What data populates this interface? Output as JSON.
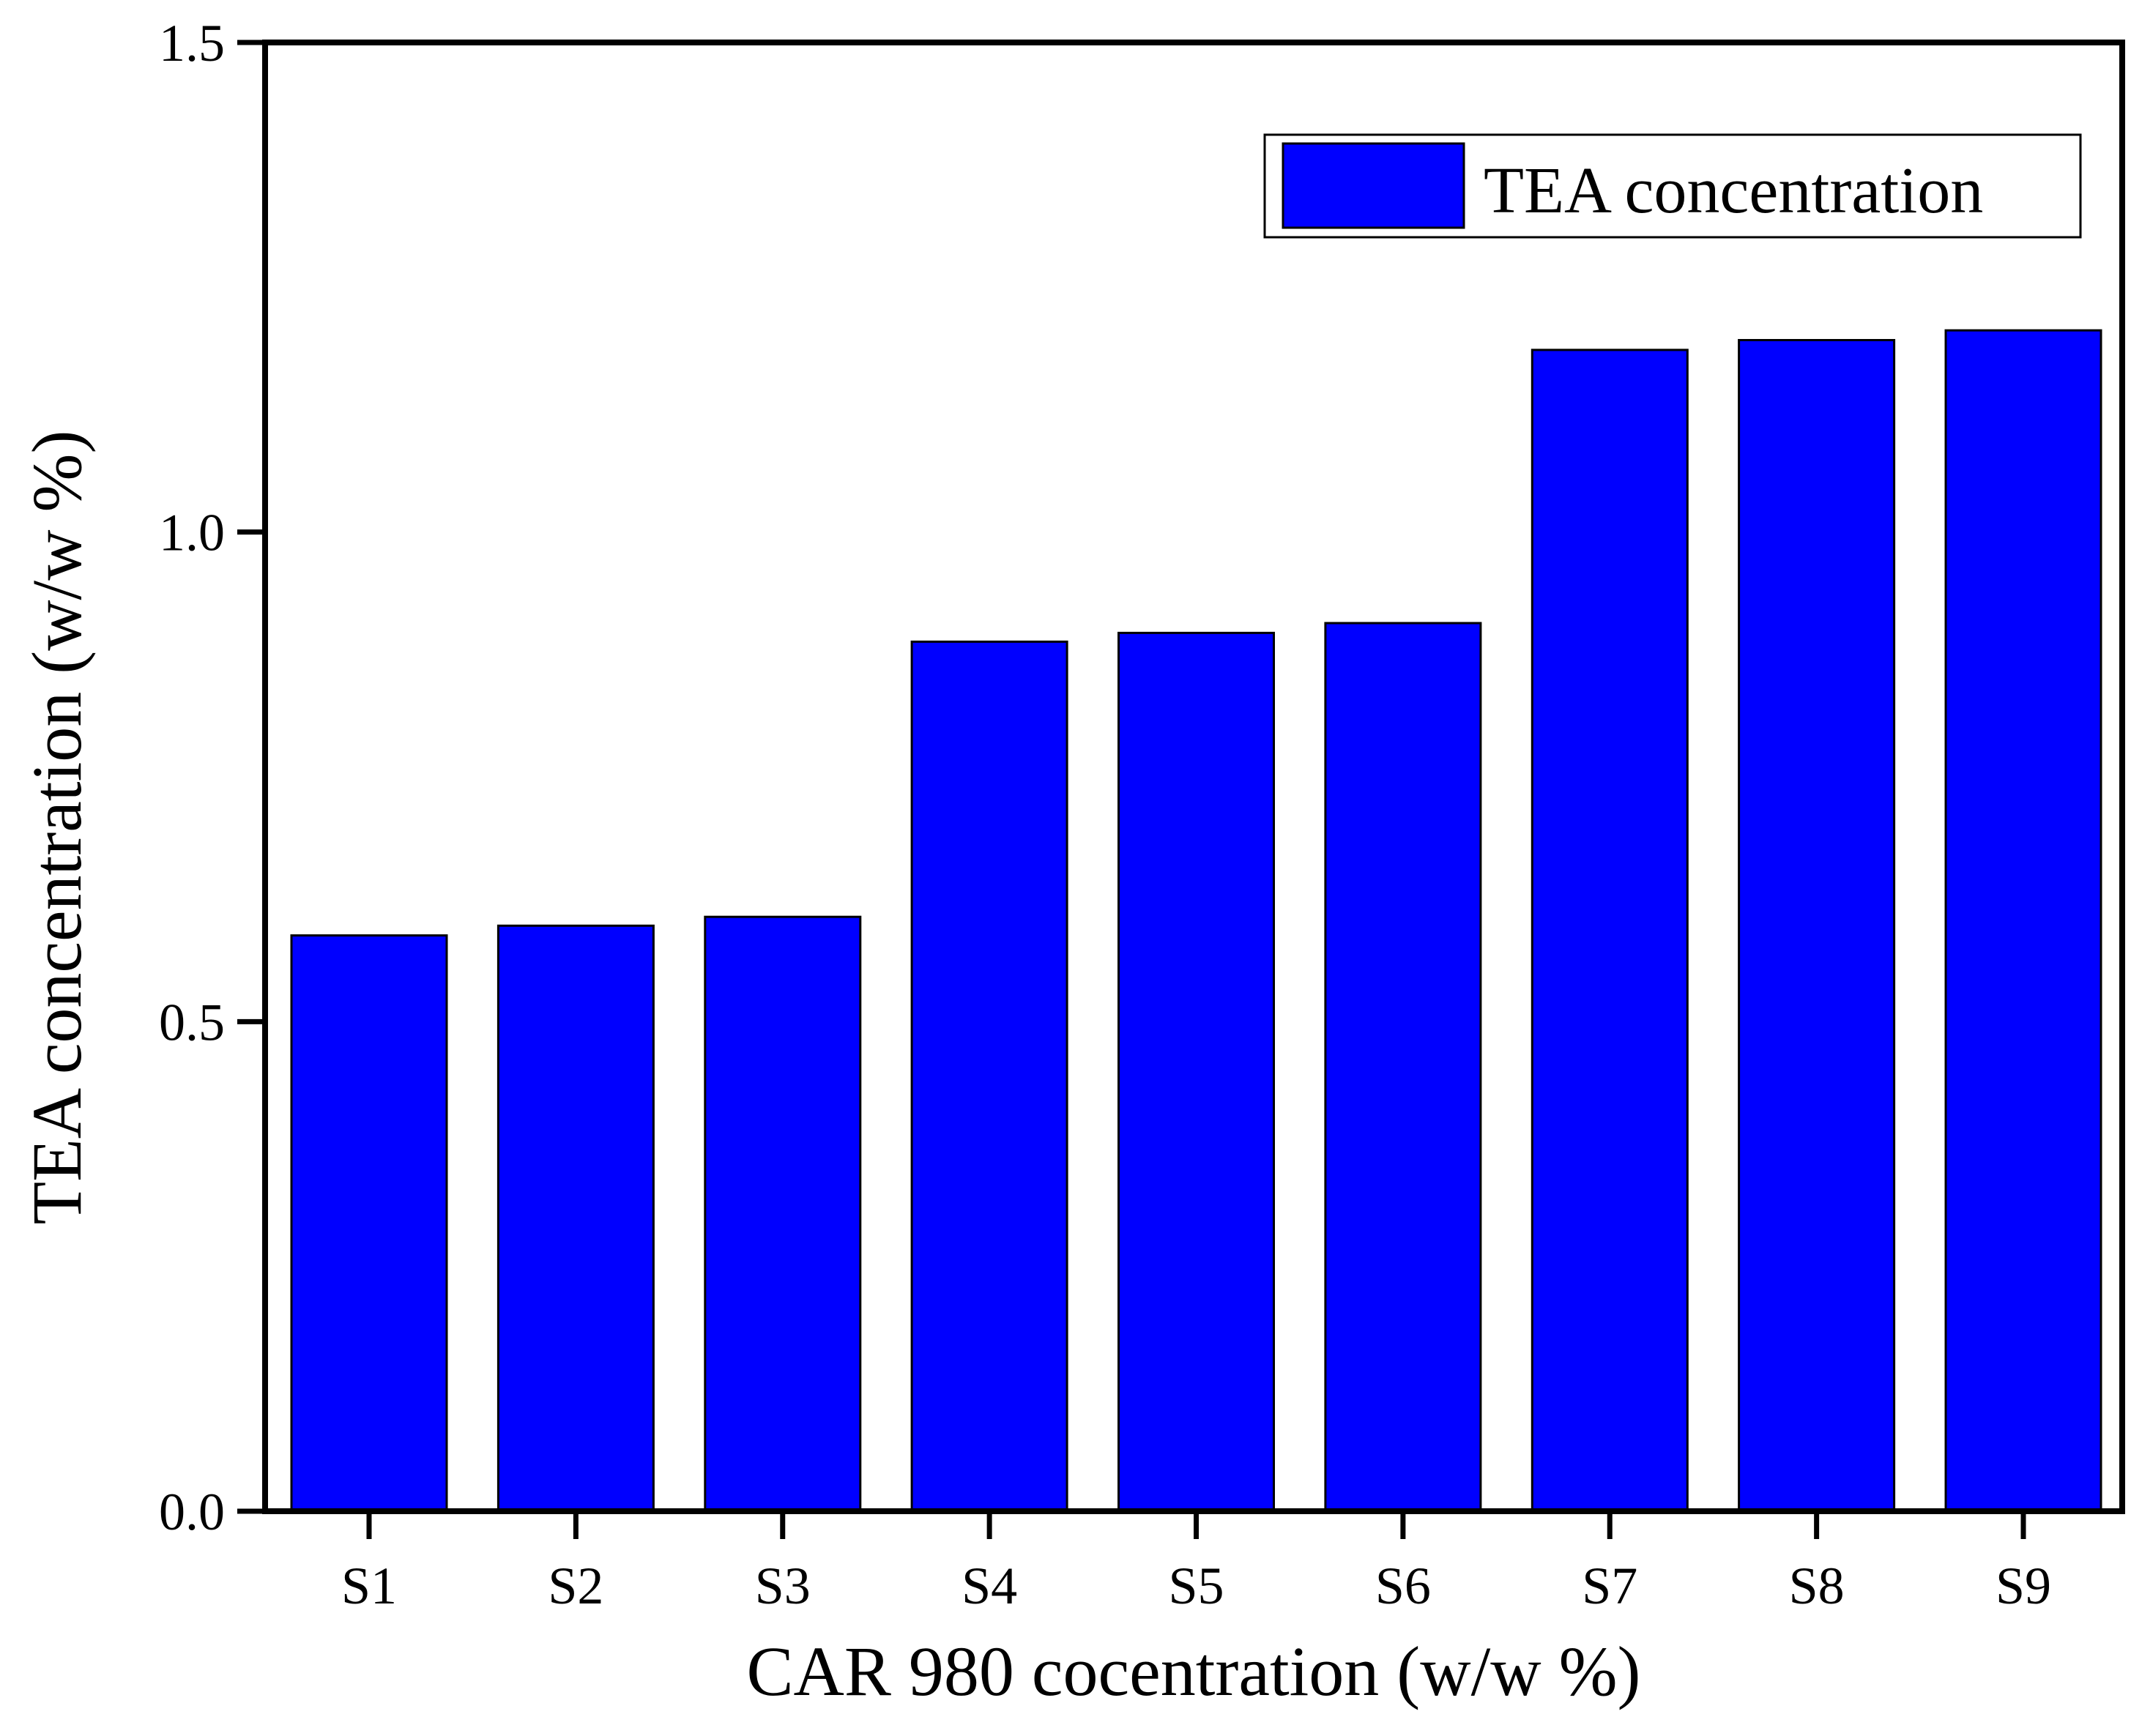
{
  "chart_data": {
    "type": "bar",
    "title": "",
    "xlabel": "CAR 980 cocentration (w/w %)",
    "ylabel": "TEA concentration (w/w %)",
    "categories": [
      "S1",
      "S2",
      "S3",
      "S4",
      "S5",
      "S6",
      "S7",
      "S8",
      "S9"
    ],
    "series": [
      {
        "name": "TEA concentration",
        "color": "#0000ff",
        "values": [
          0.588,
          0.598,
          0.607,
          0.888,
          0.897,
          0.907,
          1.186,
          1.196,
          1.206
        ]
      }
    ],
    "ylim": [
      0,
      1.5
    ],
    "yticks": [
      "0.0",
      "0.5",
      "1.0",
      "1.5"
    ],
    "ytick_values": [
      0,
      0.5,
      1.0,
      1.5
    ],
    "legend_position": "top-right",
    "grid": false
  },
  "colors": {
    "bar_fill": "#0000ff",
    "bar_stroke": "#000000",
    "axis": "#000000",
    "background": "#ffffff"
  }
}
